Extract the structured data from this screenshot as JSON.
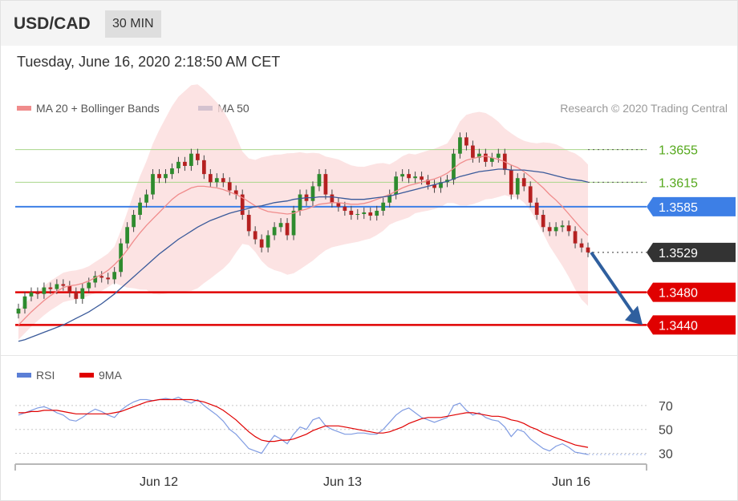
{
  "header": {
    "symbol": "USD/CAD",
    "timeframe": "30 MIN"
  },
  "datetime": "Tuesday, June 16, 2020 2:18:50 AM CET",
  "legend": {
    "ma20": "MA 20 + Bollinger Bands",
    "ma50": "MA 50"
  },
  "credit": "Research © 2020 Trading Central",
  "rsi_legend": {
    "rsi": "RSI",
    "ma9": "9MA"
  },
  "colors": {
    "ma20": "#f08c8c",
    "ma50": "#3a5a9a",
    "band": "#fbdcdc",
    "up": "#2e8b2e",
    "down": "#b52020",
    "support": "#e00000",
    "pivot": "#3d7fe6",
    "resistance": "#55a81c",
    "current": "#333333",
    "arrow": "#2f5f9e"
  },
  "chart_data": [
    {
      "type": "candlestick",
      "x_ticks": [
        "Jun 12",
        "Jun 13",
        "Jun 16"
      ],
      "price_levels": [
        {
          "label": "1.3655",
          "value": 1.3655,
          "kind": "resistance"
        },
        {
          "label": "1.3615",
          "value": 1.3615,
          "kind": "resistance"
        },
        {
          "label": "1.3585",
          "value": 1.3585,
          "kind": "pivot"
        },
        {
          "label": "1.3529",
          "value": 1.3529,
          "kind": "current"
        },
        {
          "label": "1.3480",
          "value": 1.348,
          "kind": "support"
        },
        {
          "label": "1.3440",
          "value": 1.344,
          "kind": "support"
        }
      ],
      "ylim": [
        1.3405,
        1.369
      ],
      "close": [
        1.346,
        1.3475,
        1.348,
        1.3478,
        1.3486,
        1.3484,
        1.349,
        1.3488,
        1.348,
        1.3472,
        1.3485,
        1.3492,
        1.35,
        1.3498,
        1.3496,
        1.3505,
        1.354,
        1.356,
        1.3575,
        1.359,
        1.36,
        1.3625,
        1.362,
        1.3625,
        1.3632,
        1.364,
        1.3635,
        1.365,
        1.3642,
        1.3625,
        1.3615,
        1.362,
        1.3615,
        1.3605,
        1.36,
        1.3575,
        1.3555,
        1.3545,
        1.3535,
        1.355,
        1.356,
        1.3565,
        1.355,
        1.358,
        1.36,
        1.3592,
        1.361,
        1.3625,
        1.36,
        1.359,
        1.3585,
        1.358,
        1.3575,
        1.3576,
        1.3578,
        1.3574,
        1.358,
        1.359,
        1.36,
        1.3622,
        1.3625,
        1.362,
        1.3622,
        1.3618,
        1.3612,
        1.3608,
        1.3615,
        1.3618,
        1.365,
        1.367,
        1.366,
        1.3645,
        1.365,
        1.364,
        1.3645,
        1.365,
        1.363,
        1.36,
        1.362,
        1.361,
        1.359,
        1.3575,
        1.356,
        1.3555,
        1.356,
        1.3562,
        1.3555,
        1.354,
        1.3535,
        1.3529
      ],
      "ma20": [
        1.344,
        1.3448,
        1.3456,
        1.3463,
        1.347,
        1.3476,
        1.3481,
        1.3486,
        1.3488,
        1.3489,
        1.3491,
        1.3494,
        1.3498,
        1.3502,
        1.3507,
        1.3514,
        1.3522,
        1.3532,
        1.3543,
        1.3553,
        1.3562,
        1.357,
        1.3578,
        1.3586,
        1.3594,
        1.36,
        1.3604,
        1.3608,
        1.361,
        1.361,
        1.3609,
        1.3608,
        1.3606,
        1.3603,
        1.36,
        1.3596,
        1.3591,
        1.3586,
        1.3582,
        1.3579,
        1.3578,
        1.3577,
        1.3576,
        1.3577,
        1.358,
        1.3582,
        1.3585,
        1.3588,
        1.3589,
        1.359,
        1.359,
        1.3589,
        1.3588,
        1.3588,
        1.3589,
        1.3591,
        1.3594,
        1.3597,
        1.36,
        1.3604,
        1.3608,
        1.3611,
        1.3613,
        1.3615,
        1.3617,
        1.3619,
        1.3622,
        1.3626,
        1.3632,
        1.3638,
        1.3642,
        1.3644,
        1.3646,
        1.3647,
        1.3645,
        1.3643,
        1.364,
        1.3636,
        1.3633,
        1.3628,
        1.3622,
        1.3615,
        1.3608,
        1.36,
        1.3593,
        1.3585,
        1.3576,
        1.3567,
        1.3558,
        1.355
      ],
      "ma50": [
        1.342,
        1.3422,
        1.3425,
        1.3428,
        1.3431,
        1.3434,
        1.3437,
        1.344,
        1.3444,
        1.3448,
        1.3452,
        1.3456,
        1.3461,
        1.3466,
        1.3472,
        1.3478,
        1.3485,
        1.3492,
        1.3499,
        1.3506,
        1.3513,
        1.352,
        1.3527,
        1.3533,
        1.3539,
        1.3545,
        1.355,
        1.3555,
        1.356,
        1.3564,
        1.3568,
        1.3571,
        1.3574,
        1.3577,
        1.3579,
        1.3581,
        1.3583,
        1.3585,
        1.3586,
        1.3588,
        1.359,
        1.3591,
        1.3592,
        1.3594,
        1.3595,
        1.3596,
        1.3596,
        1.3597,
        1.3597,
        1.3597,
        1.3596,
        1.3595,
        1.3594,
        1.3594,
        1.3594,
        1.3595,
        1.3596,
        1.3597,
        1.3598,
        1.36,
        1.3602,
        1.3604,
        1.3606,
        1.3608,
        1.361,
        1.3612,
        1.3614,
        1.3616,
        1.3619,
        1.3622,
        1.3624,
        1.3626,
        1.3628,
        1.3629,
        1.363,
        1.3631,
        1.3631,
        1.363,
        1.363,
        1.363,
        1.3629,
        1.3628,
        1.3627,
        1.3625,
        1.3623,
        1.3621,
        1.3619,
        1.3618,
        1.3617,
        1.3615
      ],
      "projection": {
        "from": 1.3529,
        "to": 1.344
      }
    },
    {
      "type": "line",
      "title": "RSI",
      "y_ticks": [
        70,
        50,
        30
      ],
      "ylim": [
        25,
        80
      ],
      "series": [
        {
          "name": "RSI",
          "values": [
            62,
            64,
            66,
            68,
            69,
            67,
            64,
            62,
            58,
            57,
            60,
            64,
            67,
            65,
            62,
            60,
            66,
            70,
            73,
            75,
            75,
            74,
            75,
            76,
            75,
            77,
            74,
            72,
            75,
            70,
            66,
            62,
            57,
            50,
            46,
            40,
            34,
            32,
            30,
            38,
            45,
            42,
            38,
            46,
            52,
            50,
            58,
            60,
            53,
            50,
            48,
            46,
            46,
            47,
            47,
            46,
            46,
            50,
            56,
            62,
            66,
            68,
            64,
            60,
            58,
            56,
            58,
            60,
            70,
            72,
            66,
            62,
            64,
            60,
            58,
            57,
            52,
            44,
            50,
            48,
            42,
            38,
            34,
            32,
            36,
            38,
            35,
            31,
            30,
            29
          ]
        },
        {
          "name": "9MA",
          "values": [
            64,
            64,
            65,
            65,
            66,
            66,
            66,
            65,
            64,
            63,
            63,
            63,
            63,
            63,
            63,
            64,
            65,
            67,
            69,
            71,
            73,
            74,
            75,
            75,
            75,
            75,
            75,
            75,
            74,
            73,
            71,
            69,
            66,
            62,
            58,
            53,
            48,
            44,
            41,
            40,
            40,
            41,
            41,
            42,
            44,
            46,
            49,
            51,
            53,
            53,
            53,
            52,
            51,
            50,
            49,
            48,
            47,
            47,
            48,
            50,
            52,
            55,
            57,
            59,
            60,
            60,
            60,
            61,
            62,
            63,
            64,
            64,
            63,
            62,
            61,
            61,
            60,
            58,
            57,
            55,
            52,
            50,
            47,
            45,
            43,
            41,
            39,
            37,
            36,
            35
          ]
        }
      ]
    }
  ]
}
